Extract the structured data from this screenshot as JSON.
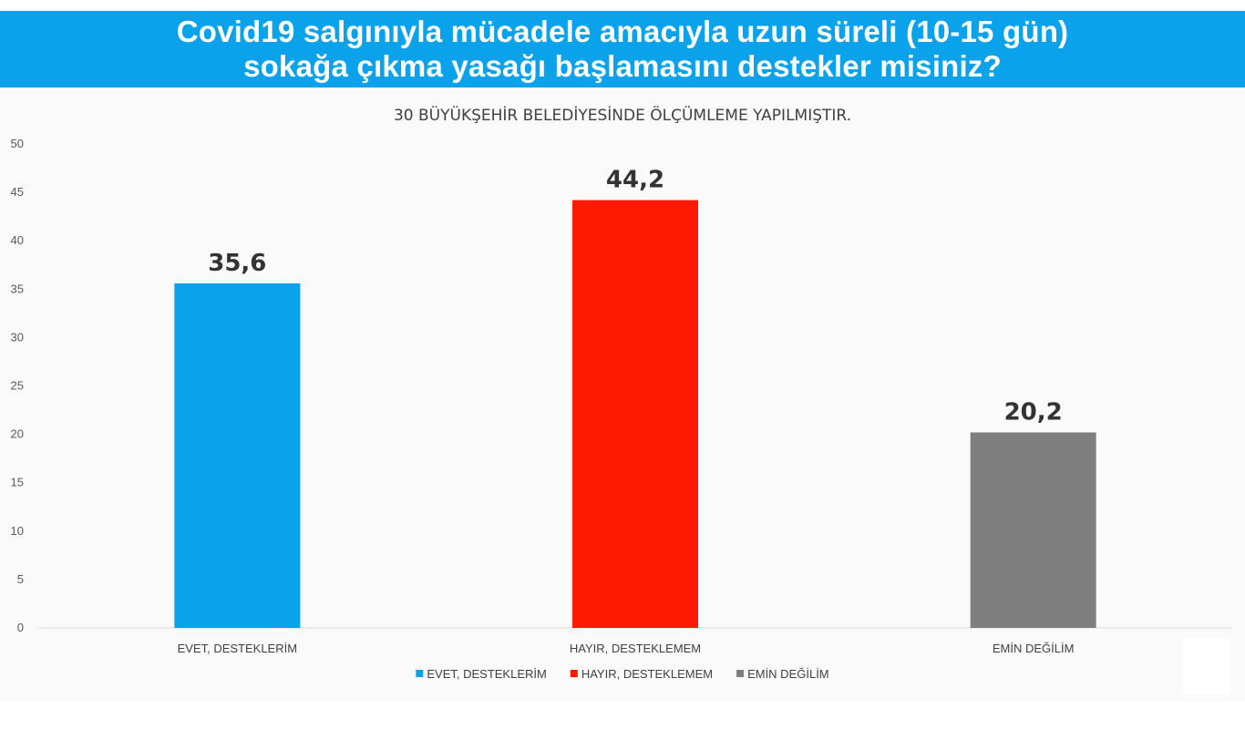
{
  "header": {
    "title_line1": "Covid19 salgınıyla mücadele amacıyla uzun süreli (10-15 gün)",
    "title_line2": "sokağa çıkma yasağı başlamasını destekler misiniz?"
  },
  "chart_data": {
    "type": "bar",
    "subtitle": "30 BÜYÜKŞEHİR BELEDİYESİNDE ÖLÇÜMLEME YAPILMIŞTIR.",
    "categories": [
      "EVET, DESTEKLERİM",
      "HAYIR, DESTEKLEMEM",
      "EMİN DEĞİLİM"
    ],
    "values": [
      35.6,
      44.2,
      20.2
    ],
    "value_labels": [
      "35,6",
      "44,2",
      "20,2"
    ],
    "colors": [
      "#0aa2ea",
      "#fe1a00",
      "#7f7f7f"
    ],
    "ylim": [
      0,
      50
    ],
    "yticks": [
      0,
      5,
      10,
      15,
      20,
      25,
      30,
      35,
      40,
      45,
      50
    ],
    "grid": false,
    "legend": {
      "position": "bottom",
      "entries": [
        "EVET, DESTEKLERİM",
        "HAYIR, DESTEKLEMEM",
        "EMİN DEĞİLİM"
      ]
    },
    "xlabel": "",
    "ylabel": ""
  }
}
